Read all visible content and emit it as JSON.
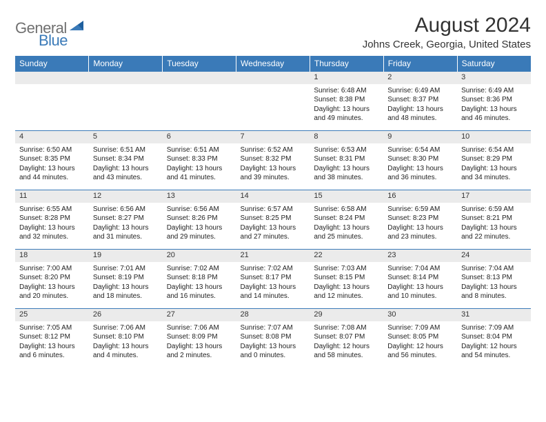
{
  "logo": {
    "word1": "General",
    "word2": "Blue"
  },
  "title": "August 2024",
  "subtitle": "Johns Creek, Georgia, United States",
  "colors": {
    "header_bg": "#3a7ab8",
    "daynum_bg": "#ebebeb",
    "row_border": "#3a7ab8",
    "text": "#333333",
    "logo_gray": "#707070",
    "logo_blue": "#3a7ab8"
  },
  "dayHeaders": [
    "Sunday",
    "Monday",
    "Tuesday",
    "Wednesday",
    "Thursday",
    "Friday",
    "Saturday"
  ],
  "weeks": [
    [
      null,
      null,
      null,
      null,
      {
        "n": "1",
        "sr": "6:48 AM",
        "ss": "8:38 PM",
        "dl": "13 hours and 49 minutes."
      },
      {
        "n": "2",
        "sr": "6:49 AM",
        "ss": "8:37 PM",
        "dl": "13 hours and 48 minutes."
      },
      {
        "n": "3",
        "sr": "6:49 AM",
        "ss": "8:36 PM",
        "dl": "13 hours and 46 minutes."
      }
    ],
    [
      {
        "n": "4",
        "sr": "6:50 AM",
        "ss": "8:35 PM",
        "dl": "13 hours and 44 minutes."
      },
      {
        "n": "5",
        "sr": "6:51 AM",
        "ss": "8:34 PM",
        "dl": "13 hours and 43 minutes."
      },
      {
        "n": "6",
        "sr": "6:51 AM",
        "ss": "8:33 PM",
        "dl": "13 hours and 41 minutes."
      },
      {
        "n": "7",
        "sr": "6:52 AM",
        "ss": "8:32 PM",
        "dl": "13 hours and 39 minutes."
      },
      {
        "n": "8",
        "sr": "6:53 AM",
        "ss": "8:31 PM",
        "dl": "13 hours and 38 minutes."
      },
      {
        "n": "9",
        "sr": "6:54 AM",
        "ss": "8:30 PM",
        "dl": "13 hours and 36 minutes."
      },
      {
        "n": "10",
        "sr": "6:54 AM",
        "ss": "8:29 PM",
        "dl": "13 hours and 34 minutes."
      }
    ],
    [
      {
        "n": "11",
        "sr": "6:55 AM",
        "ss": "8:28 PM",
        "dl": "13 hours and 32 minutes."
      },
      {
        "n": "12",
        "sr": "6:56 AM",
        "ss": "8:27 PM",
        "dl": "13 hours and 31 minutes."
      },
      {
        "n": "13",
        "sr": "6:56 AM",
        "ss": "8:26 PM",
        "dl": "13 hours and 29 minutes."
      },
      {
        "n": "14",
        "sr": "6:57 AM",
        "ss": "8:25 PM",
        "dl": "13 hours and 27 minutes."
      },
      {
        "n": "15",
        "sr": "6:58 AM",
        "ss": "8:24 PM",
        "dl": "13 hours and 25 minutes."
      },
      {
        "n": "16",
        "sr": "6:59 AM",
        "ss": "8:23 PM",
        "dl": "13 hours and 23 minutes."
      },
      {
        "n": "17",
        "sr": "6:59 AM",
        "ss": "8:21 PM",
        "dl": "13 hours and 22 minutes."
      }
    ],
    [
      {
        "n": "18",
        "sr": "7:00 AM",
        "ss": "8:20 PM",
        "dl": "13 hours and 20 minutes."
      },
      {
        "n": "19",
        "sr": "7:01 AM",
        "ss": "8:19 PM",
        "dl": "13 hours and 18 minutes."
      },
      {
        "n": "20",
        "sr": "7:02 AM",
        "ss": "8:18 PM",
        "dl": "13 hours and 16 minutes."
      },
      {
        "n": "21",
        "sr": "7:02 AM",
        "ss": "8:17 PM",
        "dl": "13 hours and 14 minutes."
      },
      {
        "n": "22",
        "sr": "7:03 AM",
        "ss": "8:15 PM",
        "dl": "13 hours and 12 minutes."
      },
      {
        "n": "23",
        "sr": "7:04 AM",
        "ss": "8:14 PM",
        "dl": "13 hours and 10 minutes."
      },
      {
        "n": "24",
        "sr": "7:04 AM",
        "ss": "8:13 PM",
        "dl": "13 hours and 8 minutes."
      }
    ],
    [
      {
        "n": "25",
        "sr": "7:05 AM",
        "ss": "8:12 PM",
        "dl": "13 hours and 6 minutes."
      },
      {
        "n": "26",
        "sr": "7:06 AM",
        "ss": "8:10 PM",
        "dl": "13 hours and 4 minutes."
      },
      {
        "n": "27",
        "sr": "7:06 AM",
        "ss": "8:09 PM",
        "dl": "13 hours and 2 minutes."
      },
      {
        "n": "28",
        "sr": "7:07 AM",
        "ss": "8:08 PM",
        "dl": "13 hours and 0 minutes."
      },
      {
        "n": "29",
        "sr": "7:08 AM",
        "ss": "8:07 PM",
        "dl": "12 hours and 58 minutes."
      },
      {
        "n": "30",
        "sr": "7:09 AM",
        "ss": "8:05 PM",
        "dl": "12 hours and 56 minutes."
      },
      {
        "n": "31",
        "sr": "7:09 AM",
        "ss": "8:04 PM",
        "dl": "12 hours and 54 minutes."
      }
    ]
  ],
  "labels": {
    "sunrise": "Sunrise: ",
    "sunset": "Sunset: ",
    "daylight": "Daylight: "
  }
}
